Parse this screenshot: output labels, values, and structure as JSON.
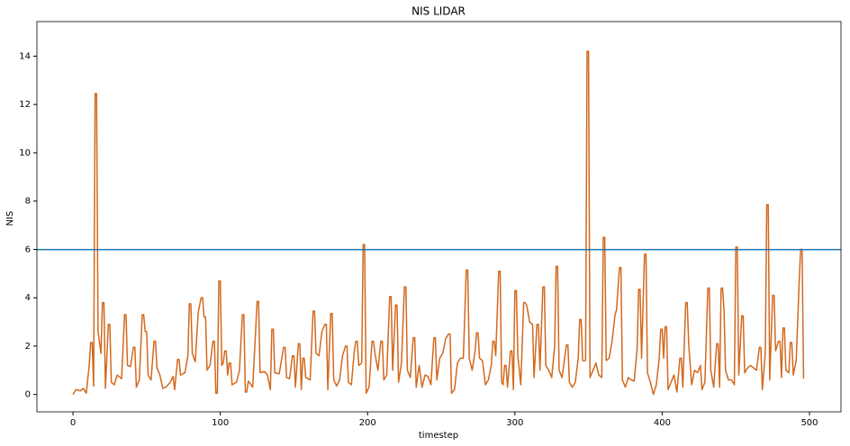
{
  "chart_data": {
    "type": "line",
    "title": "NIS LIDAR",
    "xlabel": "timestep",
    "ylabel": "NIS",
    "xlim": [
      -24.5,
      521.4
    ],
    "ylim": [
      -0.72,
      15.43
    ],
    "xticks": [
      0,
      100,
      200,
      300,
      400,
      500
    ],
    "yticks": [
      0,
      2,
      4,
      6,
      8,
      10,
      12,
      14
    ],
    "hlines": [
      {
        "value": 5.991,
        "color": "#1f77b4"
      }
    ],
    "x": [
      0,
      2,
      5,
      7,
      9,
      11,
      12,
      13,
      14,
      15,
      16,
      17,
      19,
      20,
      21,
      22,
      24,
      25,
      26,
      28,
      30,
      33,
      35,
      36,
      37,
      39,
      41,
      42,
      43,
      45,
      47,
      48,
      49,
      50,
      51,
      53,
      55,
      56,
      57,
      59,
      61,
      63,
      66,
      68,
      69,
      71,
      72,
      73,
      76,
      78,
      79,
      80,
      81,
      83,
      85,
      87,
      88,
      89,
      90,
      91,
      93,
      95,
      96,
      97,
      98,
      99,
      100,
      101,
      102,
      103,
      104,
      105,
      106,
      107,
      108,
      111,
      113,
      115,
      116,
      117,
      118,
      119,
      122,
      125,
      126,
      127,
      130,
      132,
      134,
      135,
      136,
      137,
      140,
      143,
      144,
      145,
      147,
      149,
      150,
      151,
      153,
      154,
      155,
      156,
      157,
      158,
      161,
      163,
      164,
      165,
      167,
      169,
      171,
      172,
      173,
      175,
      176,
      177,
      179,
      181,
      183,
      185,
      186,
      187,
      189,
      191,
      192,
      193,
      194,
      196,
      197,
      198,
      199,
      201,
      203,
      204,
      205,
      207,
      209,
      210,
      211,
      213,
      215,
      216,
      217,
      219,
      220,
      221,
      223,
      225,
      226,
      227,
      229,
      231,
      232,
      233,
      235,
      237,
      239,
      241,
      243,
      245,
      246,
      247,
      249,
      251,
      253,
      255,
      256,
      257,
      259,
      261,
      263,
      265,
      267,
      268,
      269,
      271,
      273,
      274,
      275,
      276,
      278,
      280,
      282,
      284,
      285,
      286,
      287,
      289,
      290,
      291,
      292,
      293,
      294,
      295,
      297,
      298,
      299,
      300,
      301,
      302,
      304,
      306,
      307,
      308,
      310,
      312,
      313,
      315,
      316,
      317,
      319,
      320,
      321,
      323,
      325,
      327,
      328,
      329,
      330,
      332,
      334,
      335,
      336,
      337,
      339,
      341,
      343,
      344,
      345,
      346,
      348,
      349,
      350,
      351,
      353,
      355,
      357,
      359,
      360,
      361,
      362,
      364,
      366,
      368,
      369,
      371,
      372,
      373,
      375,
      377,
      379,
      381,
      383,
      384,
      385,
      386,
      388,
      389,
      390,
      392,
      394,
      396,
      398,
      399,
      400,
      401,
      402,
      403,
      404,
      406,
      408,
      410,
      412,
      413,
      414,
      416,
      417,
      418,
      420,
      422,
      424,
      426,
      427,
      429,
      431,
      432,
      433,
      435,
      437,
      438,
      439,
      440,
      441,
      442,
      443,
      445,
      447,
      449,
      450,
      451,
      452,
      454,
      455,
      456,
      458,
      460,
      462,
      464,
      466,
      467,
      468,
      470,
      471,
      472,
      473,
      475,
      476,
      477,
      479,
      480,
      481,
      482,
      483,
      484,
      486,
      487,
      488,
      489,
      491,
      493,
      494,
      495,
      496
    ],
    "series": [
      {
        "color": "#d2691e",
        "values": [
          0,
          0.2,
          0.15,
          0.25,
          0.05,
          1.2,
          2.15,
          2.15,
          0.35,
          12.45,
          12.45,
          2.6,
          1.7,
          3.8,
          3.8,
          0.25,
          2.9,
          2.9,
          0.5,
          0.4,
          0.8,
          0.65,
          3.3,
          3.3,
          1.2,
          1.15,
          1.95,
          1.95,
          0.3,
          0.6,
          3.3,
          3.3,
          2.6,
          2.6,
          0.8,
          0.6,
          2.2,
          2.2,
          1.1,
          0.8,
          0.25,
          0.3,
          0.5,
          0.75,
          0.2,
          1.45,
          1.45,
          0.8,
          0.9,
          1.6,
          3.75,
          3.75,
          1.7,
          1.35,
          3.4,
          4.0,
          4.0,
          3.2,
          3.2,
          1.0,
          1.2,
          2.2,
          2.2,
          0.05,
          0.05,
          4.7,
          4.7,
          1.2,
          1.3,
          1.8,
          1.8,
          0.8,
          1.3,
          1.3,
          0.4,
          0.5,
          1.0,
          3.3,
          3.3,
          0.1,
          0.1,
          0.55,
          0.3,
          3.85,
          3.85,
          0.9,
          0.95,
          0.8,
          0.2,
          2.7,
          2.7,
          0.9,
          0.85,
          1.95,
          1.95,
          0.7,
          0.65,
          1.6,
          1.6,
          0.3,
          2.1,
          2.1,
          0.2,
          1.5,
          1.5,
          0.7,
          0.6,
          3.45,
          3.45,
          1.7,
          1.6,
          2.6,
          2.9,
          2.9,
          0.2,
          3.35,
          3.35,
          0.6,
          0.35,
          0.6,
          1.6,
          2.0,
          2.0,
          0.5,
          0.4,
          1.8,
          2.2,
          2.2,
          1.2,
          1.3,
          6.2,
          6.2,
          0.05,
          0.3,
          2.2,
          2.2,
          1.7,
          1.0,
          2.2,
          2.2,
          0.6,
          0.8,
          4.05,
          4.05,
          1.0,
          3.7,
          3.7,
          0.5,
          1.3,
          4.45,
          4.45,
          1.0,
          0.7,
          2.35,
          2.35,
          0.3,
          1.2,
          0.3,
          0.8,
          0.75,
          0.4,
          2.35,
          2.35,
          0.6,
          1.5,
          1.7,
          2.3,
          2.5,
          2.5,
          0.05,
          0.2,
          1.3,
          1.5,
          1.5,
          5.15,
          5.15,
          1.5,
          1.0,
          1.8,
          2.55,
          2.55,
          1.5,
          1.4,
          0.4,
          0.6,
          1.2,
          2.2,
          2.2,
          1.6,
          5.1,
          5.1,
          0.5,
          0.4,
          1.2,
          1.2,
          0.3,
          1.8,
          1.8,
          0.2,
          4.3,
          4.3,
          1.6,
          0.4,
          3.8,
          3.8,
          3.7,
          3.0,
          2.9,
          0.7,
          2.9,
          2.9,
          1.0,
          4.45,
          4.45,
          1.2,
          1.0,
          0.7,
          2.0,
          5.3,
          5.3,
          1.0,
          0.7,
          1.6,
          2.05,
          2.05,
          0.5,
          0.3,
          0.5,
          1.5,
          3.1,
          3.1,
          1.4,
          1.4,
          14.2,
          14.2,
          0.7,
          1.0,
          1.3,
          0.8,
          0.7,
          6.5,
          6.5,
          1.4,
          1.5,
          2.2,
          3.3,
          3.5,
          5.25,
          5.25,
          0.6,
          0.3,
          0.7,
          0.6,
          0.55,
          1.9,
          4.35,
          4.35,
          1.5,
          5.8,
          5.8,
          0.9,
          0.5,
          0.0,
          0.4,
          1.5,
          2.7,
          2.7,
          1.5,
          2.8,
          2.8,
          0.2,
          0.5,
          0.8,
          0.1,
          1.5,
          1.5,
          0.3,
          3.8,
          3.8,
          2.1,
          0.4,
          1.0,
          0.9,
          1.2,
          0.2,
          0.5,
          4.4,
          4.4,
          1.0,
          0.3,
          2.1,
          2.1,
          0.3,
          4.4,
          4.4,
          3.5,
          1.0,
          0.6,
          0.6,
          0.4,
          6.1,
          6.1,
          0.8,
          3.25,
          3.25,
          0.9,
          1.1,
          1.2,
          1.1,
          1.0,
          1.95,
          1.95,
          0.2,
          1.7,
          7.85,
          7.85,
          0.6,
          4.1,
          4.1,
          1.8,
          2.2,
          2.2,
          0.7,
          2.75,
          2.75,
          1.0,
          0.9,
          2.15,
          2.15,
          0.8,
          1.4,
          4.65,
          6.0,
          6.0,
          0.65
        ]
      }
    ]
  }
}
